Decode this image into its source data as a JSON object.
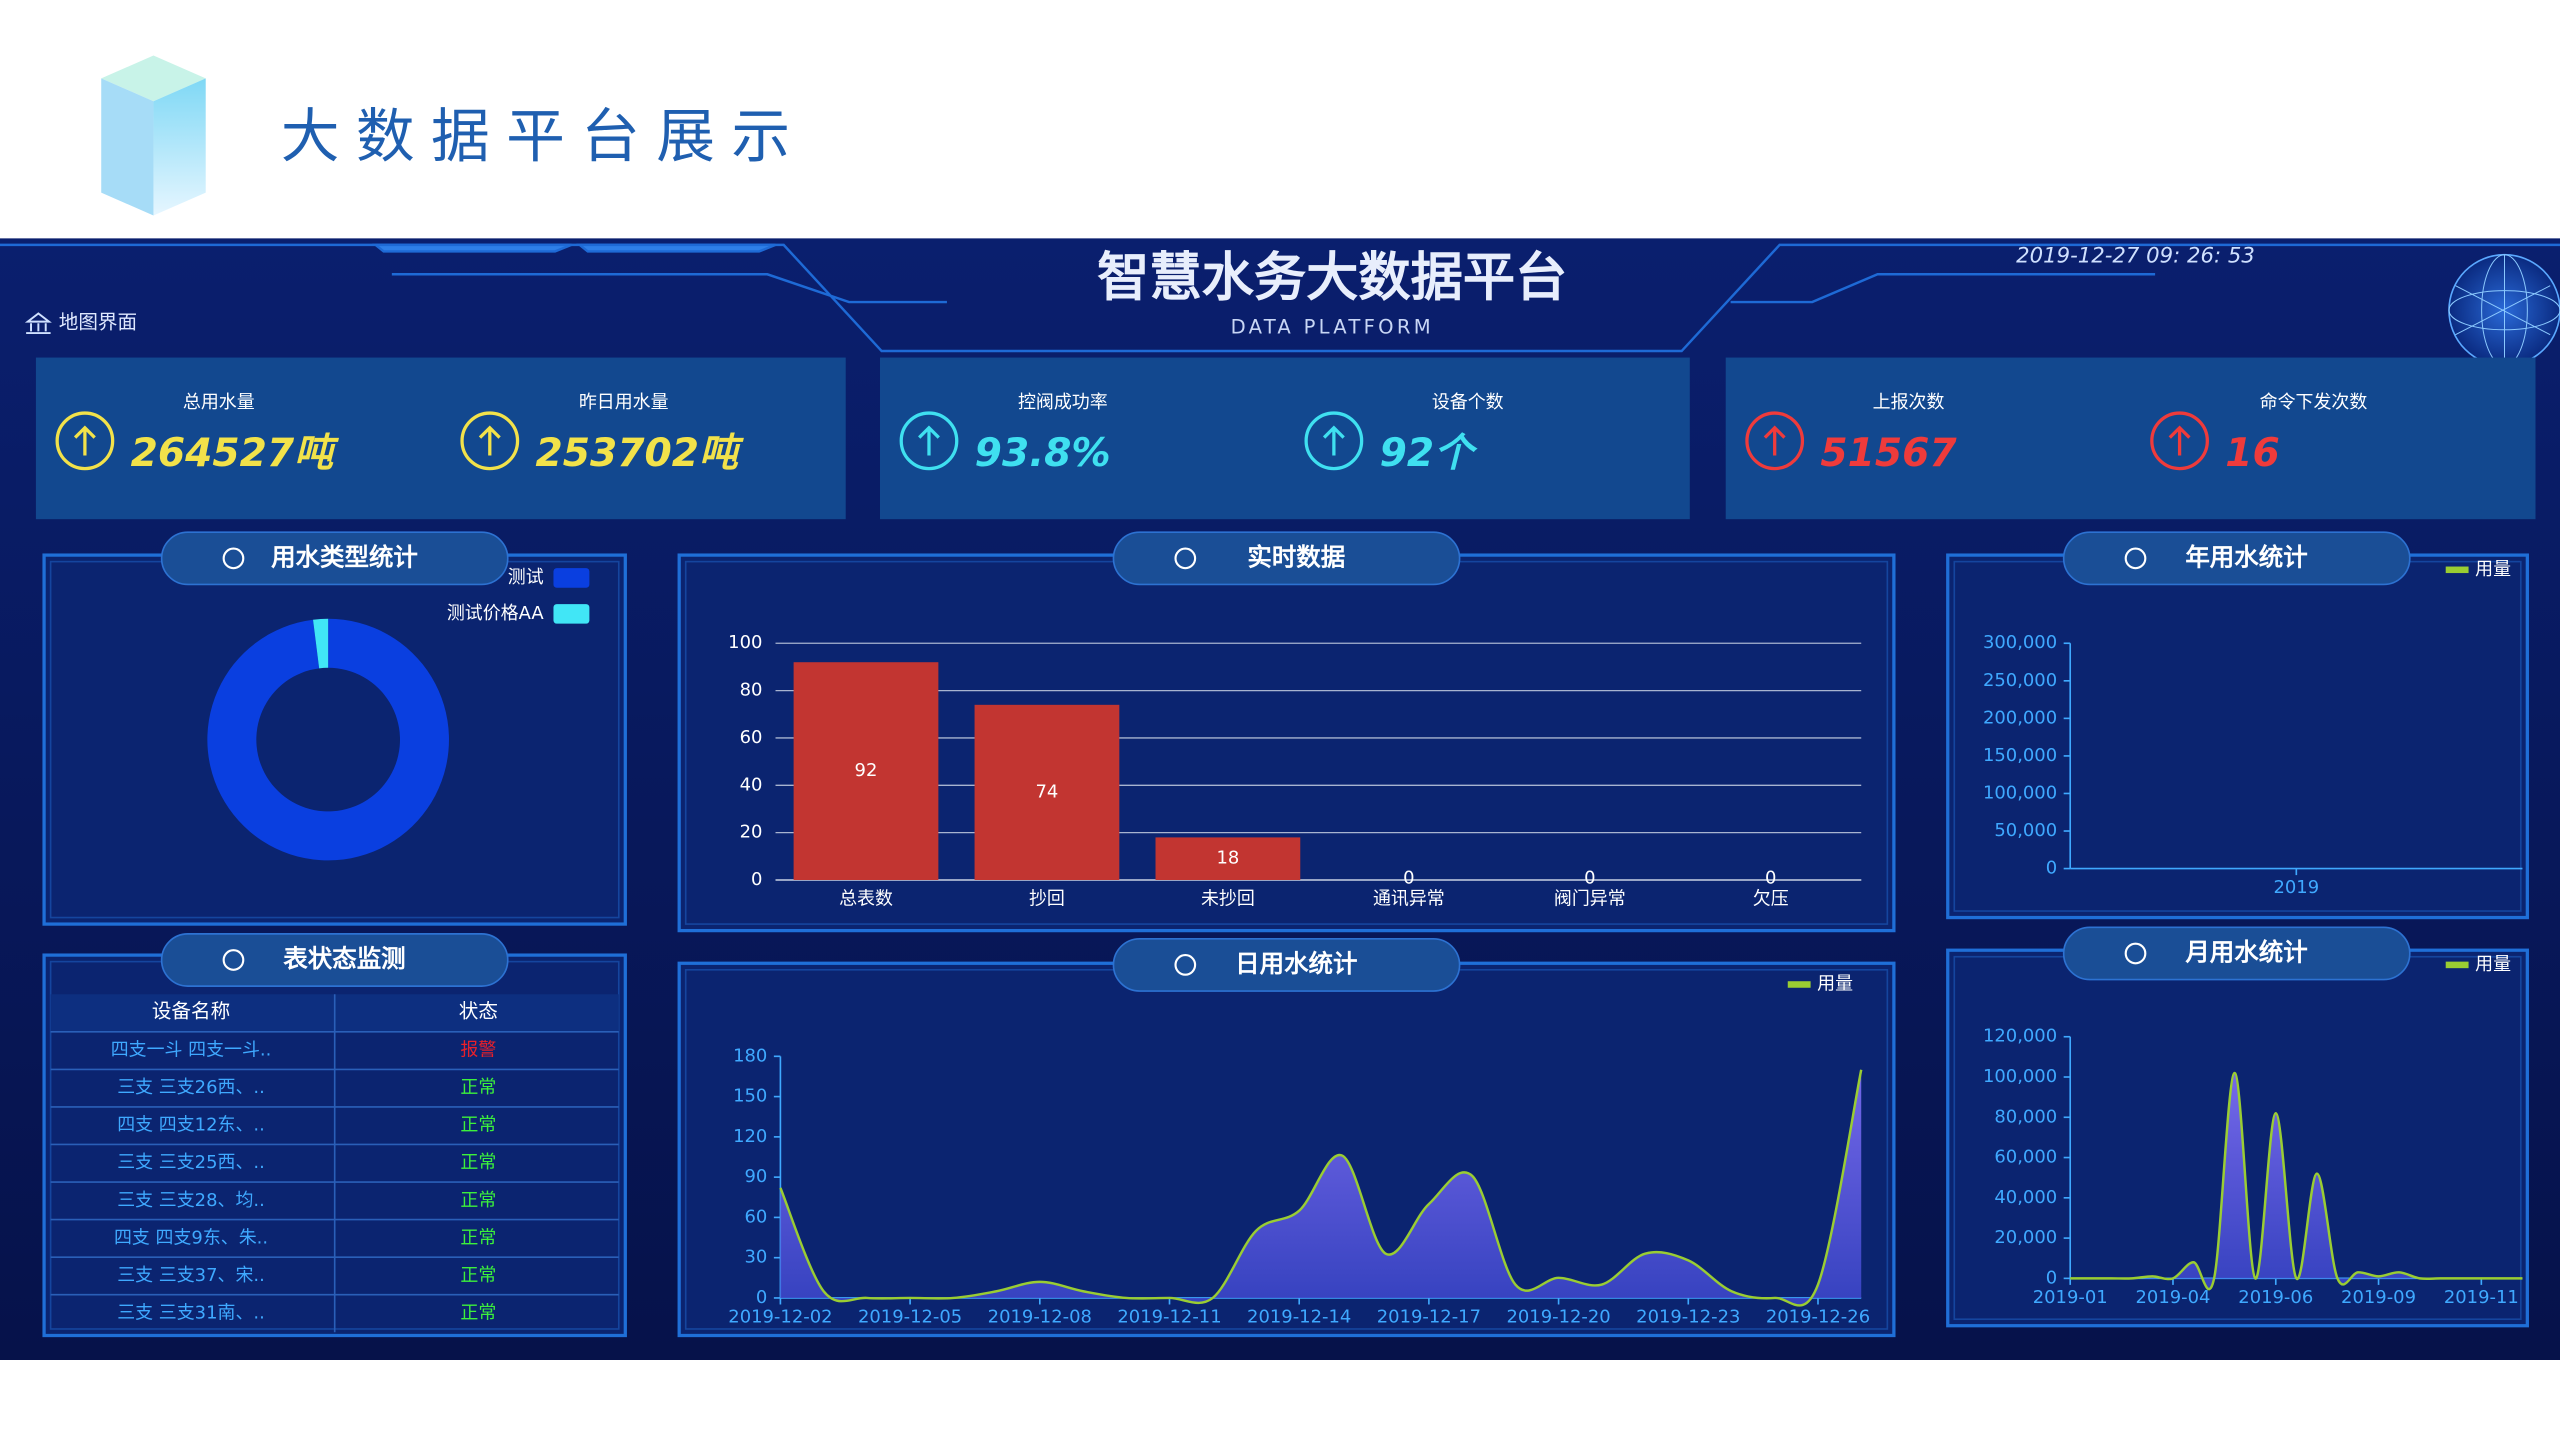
{
  "header": {
    "title": "大数据平台展示"
  },
  "dashboard": {
    "title": "智慧水务大数据平台",
    "subtitle": "DATA PLATFORM",
    "datetime": "2019-12-27  09: 26: 53",
    "nav": "地图界面"
  },
  "kpis": [
    {
      "label": "总用水量",
      "value": "264527吨",
      "color": "#f2e24a"
    },
    {
      "label": "昨日用水量",
      "value": "253702吨",
      "color": "#f2e24a"
    },
    {
      "label": "控阀成功率",
      "value": "93.8%",
      "color": "#3fe0f0"
    },
    {
      "label": "设备个数",
      "value": "92个",
      "color": "#3fe0f0"
    },
    {
      "label": "上报次数",
      "value": "51567",
      "color": "#ef3b3b"
    },
    {
      "label": "命令下发次数",
      "value": "16",
      "color": "#ef3b3b"
    }
  ],
  "table": {
    "title": "表状态监测",
    "headers": [
      "设备名称",
      "状态"
    ],
    "status_color": {
      "报警": "#e8202a",
      "正常": "#3cf03c"
    },
    "rows": [
      [
        "四支一斗 四支一斗..",
        "报警"
      ],
      [
        "三支 三支26西、..",
        "正常"
      ],
      [
        "四支 四支12东、..",
        "正常"
      ],
      [
        "三支 三支25西、..",
        "正常"
      ],
      [
        "三支 三支28、均..",
        "正常"
      ],
      [
        "四支 四支9东、朱..",
        "正常"
      ],
      [
        "三支 三支37、宋..",
        "正常"
      ],
      [
        "三支 三支31南、..",
        "正常"
      ]
    ]
  },
  "chart_data": [
    {
      "type": "pie",
      "title": "用水类型统计",
      "donut": true,
      "series": [
        {
          "name": "测试",
          "color": "#0a3fe0",
          "values": [
            98
          ]
        },
        {
          "name": "测试价格AA",
          "color": "#41e6f6",
          "values": [
            2
          ]
        }
      ]
    },
    {
      "type": "bar",
      "title": "实时数据",
      "categories": [
        "总表数",
        "抄回",
        "未抄回",
        "通讯异常",
        "阀门异常",
        "欠压"
      ],
      "values": [
        92,
        74,
        18,
        0,
        0,
        0
      ],
      "color": "#c23531",
      "ylim": [
        0,
        100
      ],
      "yticks": [
        0,
        20,
        40,
        60,
        80,
        100
      ],
      "grid": true
    },
    {
      "type": "area",
      "title": "日用水统计",
      "categories": [
        "2019-12-02",
        null,
        null,
        "2019-12-05",
        null,
        null,
        "2019-12-08",
        null,
        null,
        "2019-12-11",
        null,
        null,
        "2019-12-14",
        null,
        null,
        "2019-12-17",
        null,
        null,
        "2019-12-20",
        null,
        null,
        "2019-12-23",
        null,
        null,
        "2019-12-26",
        null
      ],
      "series": [
        {
          "name": "用量",
          "color": "#9acd32",
          "values": [
            82,
            5,
            0,
            0,
            0,
            5,
            12,
            5,
            0,
            0,
            0,
            50,
            65,
            106,
            33,
            70,
            91,
            10,
            15,
            10,
            33,
            28,
            5,
            0,
            10,
            170
          ]
        }
      ],
      "ylim": [
        0,
        180
      ],
      "yticks": [
        0,
        30,
        60,
        90,
        120,
        150,
        180
      ],
      "grid": false
    },
    {
      "type": "area",
      "title": "年用水统计",
      "categories": [
        "2019"
      ],
      "series": [
        {
          "name": "用量",
          "color": "#9acd32",
          "values": [
            null
          ]
        }
      ],
      "ylim": [
        0,
        300000
      ],
      "yticks": [
        0,
        {
          "value": 50000,
          "label": "50,000"
        },
        {
          "value": 100000,
          "label": "100,000"
        },
        {
          "value": 150000,
          "label": "150,000"
        },
        {
          "value": 200000,
          "label": "200,000"
        },
        {
          "value": 250000,
          "label": "250,000"
        },
        {
          "value": 300000,
          "label": "300,000"
        }
      ],
      "grid": false
    },
    {
      "type": "area",
      "title": "月用水统计",
      "categories": [
        "2019-01",
        null,
        null,
        null,
        null,
        "2019-04",
        null,
        null,
        null,
        null,
        "2019-06",
        null,
        null,
        null,
        null,
        "2019-09",
        null,
        null,
        null,
        null,
        "2019-11",
        null,
        null
      ],
      "series": [
        {
          "name": "用量",
          "color": "#9acd32",
          "values": [
            0,
            0,
            0,
            0,
            1000,
            0,
            8000,
            0,
            102000,
            0,
            82000,
            0,
            52000,
            0,
            3000,
            1000,
            3000,
            0,
            0,
            0,
            0,
            0,
            0
          ]
        }
      ],
      "ylim": [
        0,
        120000
      ],
      "yticks": [
        0,
        {
          "value": 20000,
          "label": "20,000"
        },
        {
          "value": 40000,
          "label": "40,000"
        },
        {
          "value": 60000,
          "label": "60,000"
        },
        {
          "value": 80000,
          "label": "80,000"
        },
        {
          "value": 100000,
          "label": "100,000"
        },
        {
          "value": 120000,
          "label": "120,000"
        }
      ],
      "grid": false
    }
  ]
}
